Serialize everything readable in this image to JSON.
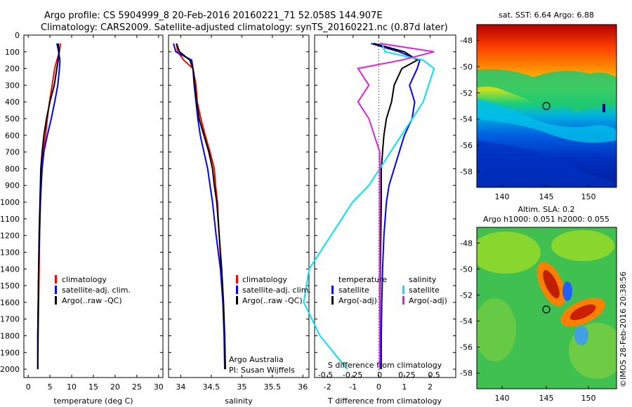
{
  "header": {
    "line1": "Argo profile: CS 5904999_8 20-Feb-2016 20160221_71 52.058S 144.907E",
    "line2": "Climatology: CARS2009. Satellite-adjusted climatology: synTS_20160221.nc (0.87d later)"
  },
  "colors": {
    "climatology": "#ff0000",
    "satellite": "#0000ff",
    "argo": "#000000",
    "sat_salinity": "#00e5ee",
    "argo_salinity": "#e020e0"
  },
  "depth_ticks": [
    "0",
    "100",
    "200",
    "300",
    "400",
    "500",
    "600",
    "700",
    "800",
    "900",
    "1000",
    "1100",
    "1200",
    "1300",
    "1400",
    "1500",
    "1600",
    "1700",
    "1800",
    "1900",
    "2000"
  ],
  "chart_data": [
    {
      "type": "line",
      "xlabel": "temperature (deg C)",
      "xlim": [
        -1,
        31
      ],
      "ylim": [
        2050,
        0
      ],
      "xticks": [
        "0",
        "5",
        "10",
        "15",
        "20",
        "25",
        "30"
      ],
      "legend": [
        "climatology",
        "satellite-adj. clim.",
        "Argo(..raw -QC)"
      ],
      "series": [
        {
          "key": "climatology",
          "depth": [
            50,
            100,
            150,
            200,
            300,
            400,
            500,
            600,
            700,
            800,
            1000,
            1200,
            1400,
            1600,
            1800,
            2000
          ],
          "values": [
            7.4,
            7.2,
            6.6,
            6.1,
            5.5,
            4.9,
            4.4,
            4.0,
            3.4,
            3.0,
            2.8,
            2.6,
            2.5,
            2.4,
            2.3,
            2.2
          ]
        },
        {
          "key": "satellite",
          "depth": [
            50,
            100,
            150,
            200,
            300,
            400,
            500,
            600,
            700,
            800,
            1000,
            1200,
            1400,
            1600,
            1800,
            2000
          ],
          "values": [
            6.6,
            7.0,
            7.3,
            7.2,
            6.8,
            6.1,
            5.3,
            4.4,
            3.6,
            3.2,
            2.8,
            2.6,
            2.4,
            2.3,
            2.2,
            2.2
          ]
        },
        {
          "key": "argo",
          "depth": [
            50,
            100,
            150,
            200,
            300,
            400,
            500,
            600,
            700,
            800,
            1000,
            1200,
            1400,
            1600,
            1800,
            2000
          ],
          "values": [
            6.9,
            7.1,
            6.9,
            6.6,
            6.0,
            5.0,
            4.2,
            3.6,
            3.2,
            2.9,
            2.7,
            2.5,
            2.4,
            2.3,
            2.2,
            2.2
          ]
        }
      ]
    },
    {
      "type": "line",
      "xlabel": "salinity",
      "xlim": [
        33.8,
        36.1
      ],
      "ylim": [
        2050,
        0
      ],
      "xticks": [
        "34",
        "34.5",
        "35",
        "35.5",
        "36"
      ],
      "legend": [
        "climatology",
        "satellite-adj. clim.",
        "Argo(..raw -QC)"
      ],
      "annotations": [
        "Argo Australia",
        "PI: Susan Wijffels"
      ],
      "series": [
        {
          "key": "climatology",
          "depth": [
            50,
            100,
            150,
            200,
            300,
            400,
            500,
            600,
            700,
            800,
            900,
            1000,
            1200,
            1400,
            1600,
            1800,
            2000
          ],
          "values": [
            33.93,
            33.95,
            34.05,
            34.2,
            34.25,
            34.27,
            34.33,
            34.4,
            34.48,
            34.55,
            34.57,
            34.6,
            34.63,
            34.66,
            34.69,
            34.72,
            34.73
          ]
        },
        {
          "key": "satellite",
          "depth": [
            50,
            100,
            150,
            200,
            300,
            400,
            500,
            600,
            700,
            800,
            900,
            1000,
            1200,
            1400,
            1600,
            1800,
            2000
          ],
          "values": [
            33.88,
            33.92,
            34.18,
            34.2,
            34.22,
            34.25,
            34.28,
            34.32,
            34.38,
            34.44,
            34.48,
            34.52,
            34.58,
            34.65,
            34.69,
            34.71,
            34.72
          ]
        },
        {
          "key": "argo",
          "depth": [
            50,
            100,
            150,
            200,
            300,
            400,
            500,
            600,
            700,
            800,
            900,
            1000,
            1200,
            1400,
            1600,
            1800,
            2000
          ],
          "values": [
            33.93,
            33.98,
            34.15,
            34.2,
            34.23,
            34.26,
            34.3,
            34.38,
            34.46,
            34.52,
            34.55,
            34.59,
            34.63,
            34.67,
            34.7,
            34.72,
            34.73
          ]
        }
      ]
    },
    {
      "type": "line",
      "xlabel": "T difference from climatology",
      "xlabel2": "S difference from climatology",
      "xlim": [
        -2.5,
        3
      ],
      "ylim": [
        2050,
        0
      ],
      "xticks": [
        "-2",
        "-1",
        "0",
        "1",
        "2"
      ],
      "xticks2": [
        "-0.5",
        "-0.25",
        "0",
        "0.25",
        "0.5"
      ],
      "legend_title_left": "temperature",
      "legend_title_right": "salinity",
      "legend": [
        "satellite",
        "Argo(-adj)",
        "satellite",
        "Argo(-adj)"
      ],
      "series": [
        {
          "key": "satellite",
          "depth": [
            50,
            100,
            150,
            200,
            300,
            400,
            500,
            600,
            700,
            800,
            900,
            1000,
            1200,
            1400,
            1600,
            1800,
            2000
          ],
          "values": [
            -0.3,
            0.8,
            1.6,
            1.5,
            1.2,
            1.4,
            1.3,
            1.0,
            0.8,
            0.6,
            0.4,
            0.3,
            0.2,
            0.15,
            0.12,
            0.1,
            0.1
          ]
        },
        {
          "key": "argo",
          "depth": [
            50,
            100,
            150,
            200,
            300,
            400,
            500,
            600,
            700,
            800,
            900,
            1000,
            1200,
            1400,
            1600,
            1800,
            2000
          ],
          "values": [
            -0.2,
            1.0,
            1.5,
            0.9,
            0.6,
            0.5,
            0.3,
            0.2,
            0.15,
            0.1,
            0.1,
            0.1,
            0.08,
            0.06,
            0.05,
            0.05,
            0.05
          ]
        },
        {
          "key": "sat_salinity",
          "depth": [
            50,
            100,
            150,
            200,
            300,
            400,
            500,
            600,
            700,
            800,
            900,
            1000,
            1200,
            1400,
            1600,
            1800,
            2000
          ],
          "values": [
            0.02,
            0.05,
            0.4,
            0.5,
            0.45,
            0.4,
            0.3,
            0.2,
            0.1,
            0.0,
            -0.1,
            -0.25,
            -0.45,
            -0.65,
            -0.7,
            -0.55,
            -0.3
          ]
        },
        {
          "key": "argo_salinity",
          "depth": [
            50,
            100,
            150,
            200,
            300,
            400,
            500,
            600,
            700,
            800,
            900,
            1000,
            1200,
            1400,
            1600,
            1800,
            2000
          ],
          "values": [
            0.0,
            0.5,
            0.2,
            -0.2,
            -0.1,
            -0.2,
            -0.1,
            -0.05,
            0.0,
            0.0,
            0.0,
            0.0,
            0.0,
            0.0,
            0.0,
            0.0,
            0.0
          ]
        }
      ]
    }
  ],
  "maps": {
    "sst_title": "sat. SST: 6.64  Argo: 6.88",
    "sla_title_1": "Altim. SLA: 0.2",
    "sla_title_2": "Argo h1000: 0.051 h2000: 0.055",
    "sst_lat_ticks": [
      "-48",
      "-50",
      "-52",
      "-54",
      "-56",
      "-58"
    ],
    "sla_lat_ticks": [
      "-48",
      "-50",
      "-52",
      "-54",
      "-56",
      "-58"
    ],
    "lon_ticks": [
      "140",
      "145",
      "150"
    ],
    "credit": "©IMOS 28-Feb-2016 20:38:56"
  }
}
